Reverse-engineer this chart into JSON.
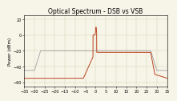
{
  "title": "Optical Spectrum - DSB vs VSB",
  "ylabel": "Power (dBm)",
  "xlabel": "",
  "xlim": [
    -35,
    35
  ],
  "ylim": [
    -65,
    25
  ],
  "yticks": [
    -60,
    -40,
    -20,
    0,
    20
  ],
  "xticks": [
    -35,
    -30,
    -25,
    -20,
    -15,
    -10,
    -5,
    0,
    5,
    10,
    15,
    20,
    25,
    30,
    35
  ],
  "bg_color": "#f7f5e8",
  "grid_color": "#ccccaa",
  "dsb_color": "#aaaaaa",
  "vsb_color": "#bb4422",
  "title_fontsize": 5.5,
  "label_fontsize": 4.0,
  "tick_fontsize": 3.5
}
